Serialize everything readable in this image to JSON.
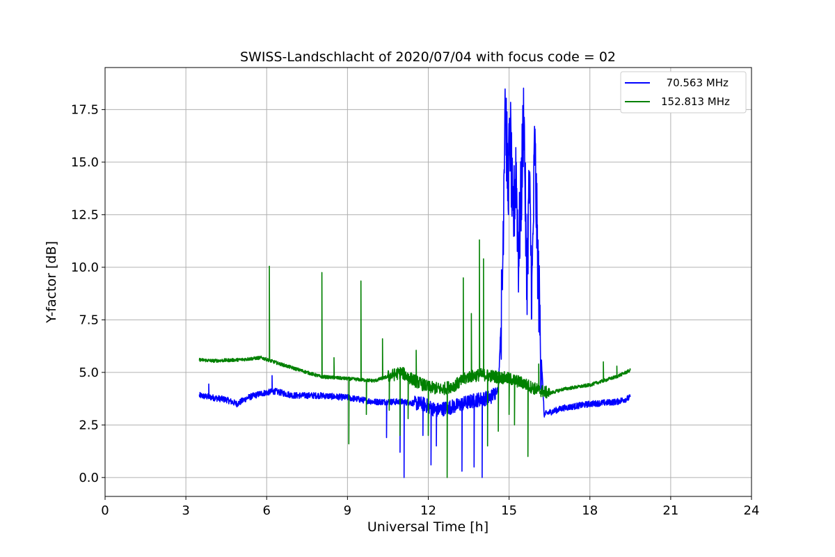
{
  "chart_data": {
    "type": "line",
    "title": "SWISS-Landschlacht of 2020/07/04 with focus code = 02",
    "xlabel": "Universal Time [h]",
    "ylabel": "Y-factor [dB]",
    "xlim": [
      0,
      24
    ],
    "ylim": [
      -0.9,
      19.5
    ],
    "xticks": [
      0,
      3,
      6,
      9,
      12,
      15,
      18,
      21,
      24
    ],
    "xtick_labels": [
      "0",
      "3",
      "6",
      "9",
      "12",
      "15",
      "18",
      "21",
      "24"
    ],
    "yticks": [
      0,
      2.5,
      5,
      7.5,
      10,
      12.5,
      15,
      17.5
    ],
    "ytick_labels": [
      "0.0",
      "2.5",
      "5.0",
      "7.5",
      "10.0",
      "12.5",
      "15.0",
      "17.5"
    ],
    "grid": true,
    "legend_position": "top-right",
    "series": [
      {
        "name": "  70.563 MHz",
        "color": "#0000ff",
        "x": [
          3.5,
          4.0,
          4.5,
          4.9,
          5.3,
          5.8,
          6.3,
          7.0,
          8.0,
          9.0,
          10.0,
          11.0,
          11.8,
          12.3,
          13.0,
          13.8,
          14.3,
          14.6,
          14.75,
          14.85,
          14.95,
          15.05,
          15.15,
          15.25,
          15.35,
          15.45,
          15.55,
          15.65,
          15.75,
          15.85,
          15.95,
          16.05,
          16.15,
          16.3,
          16.5,
          17.0,
          18.0,
          19.0,
          19.5
        ],
        "y": [
          3.9,
          3.8,
          3.7,
          3.5,
          3.8,
          4.0,
          4.1,
          3.9,
          3.9,
          3.8,
          3.6,
          3.6,
          3.5,
          3.2,
          3.4,
          3.7,
          3.8,
          4.2,
          9.0,
          18.6,
          14.0,
          16.2,
          11.5,
          15.0,
          10.5,
          13.5,
          17.7,
          9.0,
          14.0,
          8.5,
          15.9,
          11.0,
          7.0,
          3.0,
          3.1,
          3.3,
          3.5,
          3.6,
          3.8
        ]
      },
      {
        "name": "152.813 MHz",
        "color": "#008000",
        "x": [
          3.5,
          4.0,
          5.0,
          5.8,
          6.5,
          7.0,
          8.0,
          9.0,
          10.0,
          10.5,
          11.0,
          11.5,
          12.0,
          12.5,
          13.0,
          13.5,
          14.0,
          14.5,
          15.0,
          15.5,
          16.0,
          16.5,
          17.0,
          18.0,
          19.0,
          19.5
        ],
        "y": [
          5.6,
          5.55,
          5.6,
          5.7,
          5.4,
          5.2,
          4.8,
          4.7,
          4.6,
          4.8,
          5.0,
          4.6,
          4.3,
          4.2,
          4.4,
          4.8,
          4.9,
          4.8,
          4.7,
          4.5,
          4.2,
          4.0,
          4.2,
          4.4,
          4.8,
          5.1
        ]
      }
    ],
    "spikes_70_563": [
      {
        "x": 3.85,
        "y": 4.45
      },
      {
        "x": 6.2,
        "y": 4.85
      },
      {
        "x": 10.45,
        "y": 1.9
      },
      {
        "x": 10.95,
        "y": 1.2
      },
      {
        "x": 11.1,
        "y": 0.0
      },
      {
        "x": 11.8,
        "y": 2.0
      },
      {
        "x": 12.1,
        "y": 0.6
      },
      {
        "x": 12.3,
        "y": 1.5
      },
      {
        "x": 13.25,
        "y": 0.3
      },
      {
        "x": 13.7,
        "y": 0.5
      },
      {
        "x": 14.0,
        "y": 0.0
      }
    ],
    "spikes_152_813": [
      {
        "x": 6.1,
        "y": 10.05
      },
      {
        "x": 8.05,
        "y": 9.75
      },
      {
        "x": 8.5,
        "y": 5.7
      },
      {
        "x": 9.05,
        "y": 1.6
      },
      {
        "x": 9.5,
        "y": 9.35
      },
      {
        "x": 9.7,
        "y": 3.0
      },
      {
        "x": 10.3,
        "y": 6.6
      },
      {
        "x": 10.55,
        "y": 3.2
      },
      {
        "x": 10.95,
        "y": 2.0
      },
      {
        "x": 11.25,
        "y": 2.8
      },
      {
        "x": 11.55,
        "y": 6.05
      },
      {
        "x": 12.0,
        "y": 2.0
      },
      {
        "x": 12.7,
        "y": 0.0
      },
      {
        "x": 13.3,
        "y": 9.5
      },
      {
        "x": 13.6,
        "y": 7.8
      },
      {
        "x": 13.9,
        "y": 11.3
      },
      {
        "x": 14.05,
        "y": 10.4
      },
      {
        "x": 14.2,
        "y": 1.5
      },
      {
        "x": 14.6,
        "y": 2.2
      },
      {
        "x": 15.0,
        "y": 3.0
      },
      {
        "x": 15.2,
        "y": 2.5
      },
      {
        "x": 15.7,
        "y": 1.0
      },
      {
        "x": 16.1,
        "y": 5.4
      },
      {
        "x": 18.5,
        "y": 5.5
      },
      {
        "x": 19.0,
        "y": 5.3
      }
    ]
  }
}
